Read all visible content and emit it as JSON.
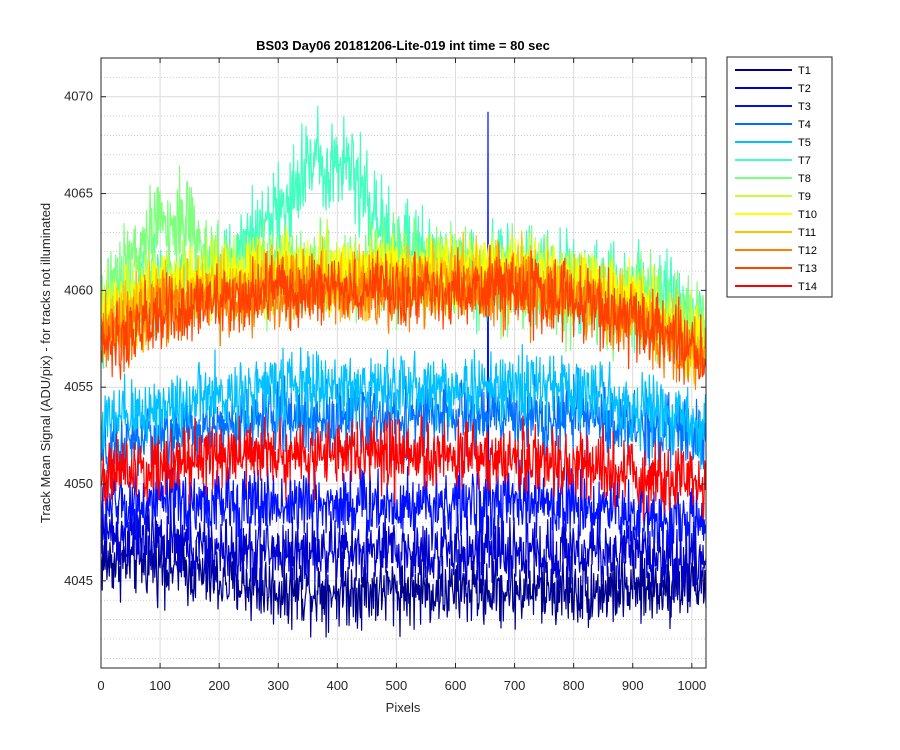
{
  "chart_data": {
    "type": "line",
    "title": "BS03 Day06 20181206-Lite-019 int time = 80 sec",
    "xlabel": "Pixels",
    "ylabel": "Track Mean Signal (ADU/pix) - for tracks not illuminated",
    "xlim": [
      0,
      1024
    ],
    "ylim": [
      4040.5,
      4072
    ],
    "xticks": [
      0,
      100,
      200,
      300,
      400,
      500,
      600,
      700,
      800,
      900,
      1000
    ],
    "yticks": [
      4045,
      4050,
      4055,
      4060,
      4065,
      4070
    ],
    "grid": true,
    "minor_grid": true,
    "legend_position": "outside-top-right",
    "series": [
      {
        "name": "T1",
        "color": "#00008f",
        "x": [
          0,
          100,
          200,
          300,
          400,
          500,
          600,
          700,
          800,
          900,
          1024
        ],
        "y": [
          4046,
          4046,
          4045,
          4044.5,
          4044.5,
          4044.5,
          4044.5,
          4044.5,
          4044.5,
          4044.5,
          4045
        ]
      },
      {
        "name": "T2",
        "color": "#0000cf",
        "x": [
          0,
          100,
          200,
          300,
          400,
          500,
          600,
          700,
          800,
          900,
          1024
        ],
        "y": [
          4047.5,
          4047,
          4046.5,
          4046.5,
          4046.5,
          4046.5,
          4046.5,
          4046.5,
          4046.5,
          4046.5,
          4046
        ]
      },
      {
        "name": "T3",
        "color": "#0010ff",
        "x": [
          0,
          100,
          200,
          300,
          400,
          500,
          600,
          700,
          800,
          900,
          1024
        ],
        "y": [
          4049,
          4049,
          4049,
          4049,
          4049,
          4049,
          4049,
          4049,
          4049,
          4048.5,
          4048
        ]
      },
      {
        "name": "T4",
        "color": "#0070ff",
        "x": [
          0,
          100,
          200,
          300,
          400,
          500,
          600,
          700,
          800,
          900,
          1024
        ],
        "y": [
          4051.5,
          4052.5,
          4053,
          4053.5,
          4053.5,
          4053.5,
          4053.5,
          4053.5,
          4053.5,
          4053,
          4052.5
        ]
      },
      {
        "name": "T5",
        "color": "#00c0ff",
        "x": [
          0,
          100,
          200,
          300,
          400,
          500,
          600,
          700,
          800,
          900,
          1024
        ],
        "y": [
          4053,
          4054,
          4054.5,
          4055,
          4055,
          4055,
          4055,
          4055,
          4055,
          4054,
          4053
        ]
      },
      {
        "name": "T7",
        "color": "#40ffbf",
        "x": [
          0,
          100,
          200,
          300,
          350,
          400,
          450,
          500,
          600,
          700,
          800,
          900,
          1024
        ],
        "y": [
          4059,
          4060,
          4061,
          4064,
          4066.5,
          4067,
          4065,
          4062,
          4061,
          4061,
          4060.5,
          4060,
          4058
        ]
      },
      {
        "name": "T8",
        "color": "#80ff7f",
        "x": [
          0,
          100,
          150,
          200,
          300,
          400,
          500,
          600,
          700,
          800,
          900,
          1024
        ],
        "y": [
          4059.5,
          4063.5,
          4063.5,
          4061,
          4061,
          4061,
          4061,
          4061,
          4060.5,
          4060,
          4059.5,
          4058
        ]
      },
      {
        "name": "T9",
        "color": "#c0ff40",
        "x": [
          0,
          100,
          200,
          300,
          400,
          500,
          600,
          700,
          800,
          900,
          1024
        ],
        "y": [
          4059,
          4060.5,
          4061,
          4061,
          4061,
          4061,
          4061,
          4061,
          4060.5,
          4059.5,
          4057.5
        ]
      },
      {
        "name": "T10",
        "color": "#ffff00",
        "x": [
          0,
          100,
          200,
          300,
          400,
          500,
          600,
          700,
          800,
          900,
          1024
        ],
        "y": [
          4058.5,
          4060,
          4060.5,
          4061,
          4061,
          4061,
          4061,
          4061,
          4060.5,
          4059.5,
          4057.5
        ]
      },
      {
        "name": "T11",
        "color": "#ffc000",
        "x": [
          0,
          100,
          200,
          300,
          400,
          500,
          600,
          700,
          800,
          900,
          1024
        ],
        "y": [
          4058,
          4059.5,
          4060,
          4060.5,
          4060.5,
          4060.5,
          4060.5,
          4060.5,
          4060,
          4059,
          4057
        ]
      },
      {
        "name": "T12",
        "color": "#ff8000",
        "x": [
          0,
          100,
          200,
          300,
          400,
          500,
          600,
          700,
          800,
          900,
          1024
        ],
        "y": [
          4057.5,
          4059,
          4059.5,
          4060,
          4060,
          4060,
          4060,
          4060,
          4059.5,
          4058.5,
          4056.5
        ]
      },
      {
        "name": "T13",
        "color": "#ff4000",
        "x": [
          0,
          100,
          200,
          300,
          400,
          500,
          600,
          700,
          800,
          900,
          1024
        ],
        "y": [
          4057,
          4058.5,
          4059.5,
          4060,
          4060,
          4060,
          4060,
          4060,
          4059.5,
          4058.5,
          4056.5
        ]
      },
      {
        "name": "T14",
        "color": "#ff0000",
        "x": [
          0,
          100,
          200,
          300,
          400,
          500,
          600,
          700,
          800,
          900,
          1024
        ],
        "y": [
          4050.5,
          4051,
          4051.5,
          4051.5,
          4051.5,
          4051.5,
          4051.5,
          4051.5,
          4051,
          4050.5,
          4050
        ]
      }
    ]
  }
}
